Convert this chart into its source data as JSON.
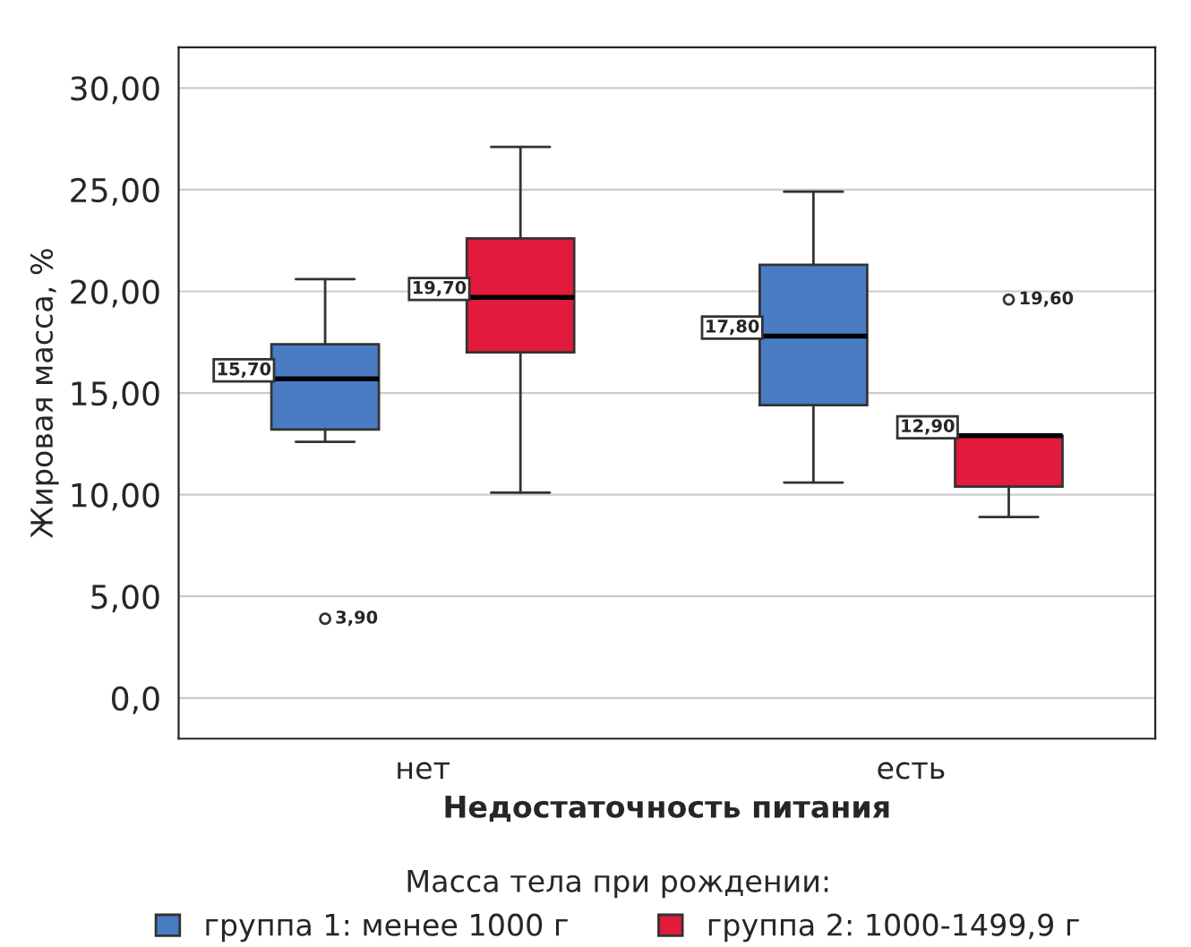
{
  "chart_data": {
    "type": "box",
    "xlabel": "Недостаточность питания",
    "ylabel": "Жировая масса, %",
    "legend_title": "Масса тела при рождении:",
    "categories": [
      "нет",
      "есть"
    ],
    "series": [
      {
        "name": "группа 1: менее 1000 г",
        "color": "#4a7cc4",
        "boxes": [
          {
            "low": 12.6,
            "q1": 13.2,
            "median": 15.7,
            "q3": 17.4,
            "high": 20.6,
            "outliers": [
              3.9
            ]
          },
          {
            "low": 10.6,
            "q1": 14.4,
            "median": 17.8,
            "q3": 21.3,
            "high": 24.9
          }
        ]
      },
      {
        "name": "группа 2: 1000-1499,9 г",
        "color": "#e21a3c",
        "boxes": [
          {
            "low": 10.1,
            "q1": 17.0,
            "median": 19.7,
            "q3": 22.6,
            "high": 27.1
          },
          {
            "low": 8.9,
            "q1": 10.4,
            "median": 12.9,
            "q3": 12.9,
            "high": 12.9,
            "outliers": [
              19.6
            ]
          }
        ]
      }
    ],
    "ylim": [
      -2,
      32
    ],
    "yticks": [
      {
        "value": 0,
        "label": "0,0"
      },
      {
        "value": 5,
        "label": "5,00"
      },
      {
        "value": 10,
        "label": "10,00"
      },
      {
        "value": 15,
        "label": "15,00"
      },
      {
        "value": 20,
        "label": "20,00"
      },
      {
        "value": 25,
        "label": "25,00"
      },
      {
        "value": 30,
        "label": "30,00"
      }
    ],
    "annotations": [
      "15,70",
      "3,90",
      "19,70",
      "17,80",
      "12,90",
      "19,60"
    ],
    "grid": "y",
    "legend": "bottom"
  }
}
